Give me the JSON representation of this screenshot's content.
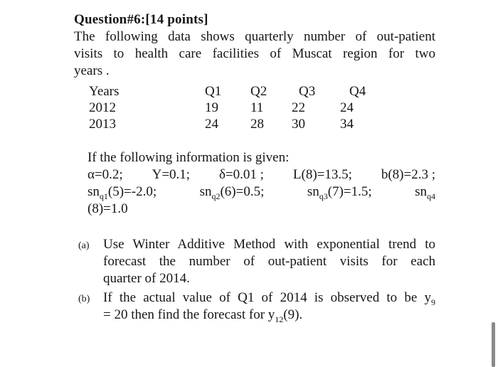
{
  "page": {
    "background": "#ffffff",
    "text_color": "#161616",
    "scrollbar_color": "#8a8a8a"
  },
  "question": {
    "title": "Question#6:[14 points]",
    "intro": {
      "line1": "The following data shows quarterly number of out-patient",
      "line2": "visits to health care facilities of Muscat region for two",
      "line3": "years ."
    }
  },
  "table": {
    "columns": {
      "c0": "Years",
      "c1": "Q1",
      "c2": "Q2",
      "c3": "Q3",
      "c4": "Q4"
    },
    "rows": [
      {
        "year": "2012",
        "q1": "19",
        "q2": "11",
        "q3": "22",
        "q4": "24"
      },
      {
        "year": "2013",
        "q1": "24",
        "q2": "28",
        "q3": "30",
        "q4": "34"
      }
    ]
  },
  "given": {
    "intro": "If the following information is given:",
    "params_line": [
      "α=0.2;",
      "Υ=0.1;",
      "δ=0.01 ;",
      "L(8)=13.5;",
      "b(8)=2.3 ;"
    ],
    "sn_line": [
      {
        "base": "sn",
        "sub": "q1",
        "rest": "(5)=-2.0;"
      },
      {
        "base": "sn",
        "sub": "q2",
        "rest": "(6)=0.5;"
      },
      {
        "base": "sn",
        "sub": "q3",
        "rest": "(7)=1.5;"
      },
      {
        "base": "sn",
        "sub": "q4",
        "rest": ""
      }
    ],
    "overflow": "(8)=1.0"
  },
  "parts": {
    "a": {
      "marker": "(a)",
      "line1": "Use Winter Additive Method with exponential trend to",
      "line2": "forecast the number of out-patient visits for each",
      "line3": "quarter of 2014."
    },
    "b": {
      "marker": "(b)",
      "line1_text": "If the actual value of Q1 of 2014 is observed to be y",
      "line1_sub": "9",
      "line2_text": "= 20 then find the forecast for y",
      "line2_sub": "12",
      "line2_end": "(9)."
    }
  }
}
